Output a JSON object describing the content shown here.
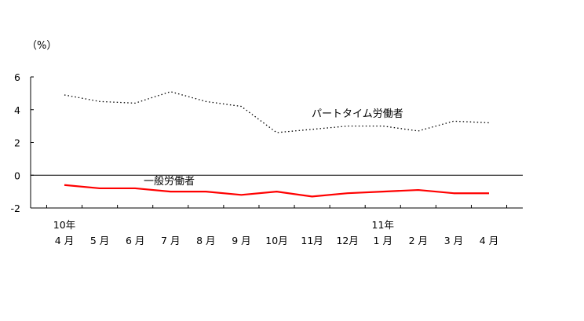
{
  "chart_data": {
    "type": "line",
    "unit_label": "（%）",
    "ylim": [
      -2,
      6
    ],
    "yticks": [
      6,
      4,
      2,
      0,
      -2
    ],
    "categories": [
      "4 月",
      "5 月",
      "6 月",
      "7 月",
      "8 月",
      "9 月",
      "10月",
      "11月",
      "12月",
      "1 月",
      "2 月",
      "3 月",
      "4 月"
    ],
    "year_labels": [
      {
        "index": 0,
        "text": "10年"
      },
      {
        "index": 9,
        "text": "11年"
      }
    ],
    "series": [
      {
        "name": "パートタイム労働者",
        "style": "dotted",
        "color": "#000000",
        "values": [
          4.9,
          4.5,
          4.4,
          5.1,
          4.5,
          4.2,
          2.6,
          2.8,
          3.0,
          3.0,
          2.7,
          3.3,
          3.2
        ]
      },
      {
        "name": "一般労働者",
        "style": "solid",
        "color": "#ff0000",
        "values": [
          -0.6,
          -0.8,
          -0.8,
          -1.0,
          -1.0,
          -1.2,
          -1.0,
          -1.3,
          -1.1,
          -1.0,
          -0.9,
          -1.1,
          -1.1
        ]
      }
    ],
    "grid": false
  }
}
